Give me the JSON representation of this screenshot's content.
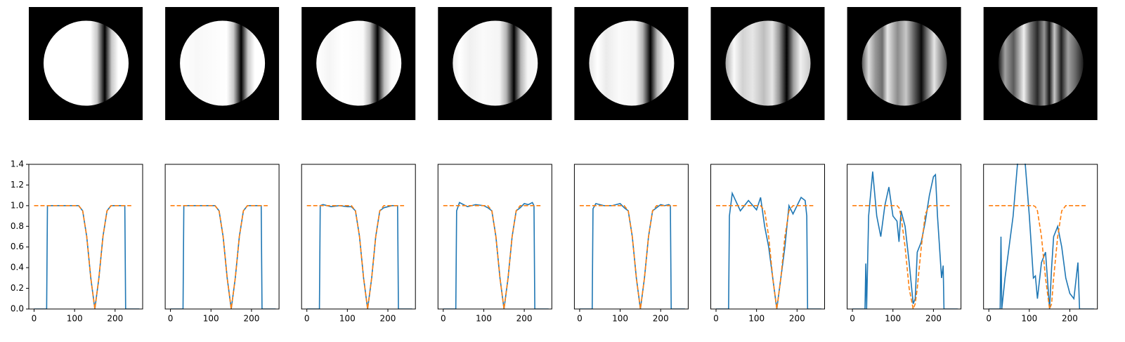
{
  "chart_data": [
    {
      "type": "line",
      "x": [
        0,
        20,
        31,
        33,
        40,
        60,
        80,
        100,
        110,
        120,
        130,
        140,
        150,
        160,
        170,
        180,
        190,
        200,
        210,
        220,
        224,
        226,
        240,
        260
      ],
      "series": [
        {
          "color": "#1f77b4",
          "linestyle": "solid",
          "values": [
            0,
            0,
            0,
            1,
            1,
            1,
            1,
            1,
            1,
            0.95,
            0.7,
            0.3,
            0,
            0.3,
            0.7,
            0.95,
            1,
            1,
            1,
            1,
            1,
            0,
            0,
            0
          ]
        },
        {
          "color": "#ff7f0e",
          "linestyle": "dashed",
          "values": [
            1,
            1,
            1,
            1,
            1,
            1,
            1,
            1,
            1,
            0.95,
            0.7,
            0.3,
            0,
            0.3,
            0.7,
            0.95,
            1,
            1,
            1,
            1,
            1,
            1,
            1,
            null
          ]
        }
      ],
      "xlim": [
        -13,
        268
      ],
      "ylim": [
        0,
        1.4
      ],
      "xticks": [
        0,
        100,
        200
      ],
      "yticks": [
        {
          "value": 0,
          "label": "0.0"
        },
        {
          "value": 0.2,
          "label": "0.2"
        },
        {
          "value": 0.4,
          "label": "0.4"
        },
        {
          "value": 0.6,
          "label": "0.6"
        },
        {
          "value": 0.8,
          "label": "0.8"
        },
        {
          "value": 1,
          "label": "1.0"
        },
        {
          "value": 1.2,
          "label": "1.2"
        },
        {
          "value": 1.4,
          "label": "1.4"
        }
      ]
    },
    {
      "type": "line",
      "x": [
        0,
        20,
        31,
        33,
        40,
        60,
        80,
        100,
        110,
        120,
        130,
        140,
        150,
        160,
        170,
        180,
        190,
        200,
        210,
        220,
        224,
        226,
        240,
        260
      ],
      "series": [
        {
          "color": "#1f77b4",
          "linestyle": "solid",
          "values": [
            0,
            0,
            0,
            1,
            1,
            1,
            1,
            1,
            1,
            0.95,
            0.7,
            0.3,
            0,
            0.3,
            0.7,
            0.95,
            1,
            1,
            1,
            1,
            1,
            0,
            0,
            0
          ]
        },
        {
          "color": "#ff7f0e",
          "linestyle": "dashed",
          "values": [
            1,
            1,
            1,
            1,
            1,
            1,
            1,
            1,
            1,
            0.95,
            0.7,
            0.3,
            0,
            0.3,
            0.7,
            0.95,
            1,
            1,
            1,
            1,
            1,
            1,
            1,
            null
          ]
        }
      ],
      "xlim": [
        -13,
        268
      ],
      "ylim": [
        0,
        1.4
      ],
      "xticks": [
        0,
        100,
        200
      ]
    },
    {
      "type": "line",
      "x": [
        0,
        20,
        31,
        33,
        40,
        60,
        80,
        100,
        110,
        120,
        130,
        140,
        150,
        160,
        170,
        180,
        190,
        200,
        210,
        220,
        224,
        226,
        240,
        260
      ],
      "series": [
        {
          "color": "#1f77b4",
          "linestyle": "solid",
          "values": [
            0,
            0,
            0,
            1,
            1.01,
            0.99,
            1,
            0.99,
            0.99,
            0.95,
            0.7,
            0.3,
            0,
            0.3,
            0.7,
            0.95,
            0.98,
            0.99,
            1,
            1,
            1,
            0,
            0,
            0
          ]
        },
        {
          "color": "#ff7f0e",
          "linestyle": "dashed",
          "values": [
            1,
            1,
            1,
            1,
            1,
            1,
            1,
            1,
            1,
            0.95,
            0.7,
            0.3,
            0,
            0.3,
            0.7,
            0.95,
            1,
            1,
            1,
            1,
            1,
            1,
            1,
            null
          ]
        }
      ],
      "xlim": [
        -13,
        268
      ],
      "ylim": [
        0,
        1.4
      ],
      "xticks": [
        0,
        100,
        200
      ]
    },
    {
      "type": "line",
      "x": [
        0,
        20,
        31,
        33,
        40,
        60,
        80,
        100,
        110,
        120,
        130,
        140,
        150,
        160,
        170,
        180,
        190,
        200,
        210,
        220,
        224,
        226,
        240,
        260
      ],
      "series": [
        {
          "color": "#1f77b4",
          "linestyle": "solid",
          "values": [
            0,
            0,
            0,
            0.95,
            1.03,
            0.99,
            1.01,
            1,
            0.98,
            0.95,
            0.7,
            0.3,
            0,
            0.3,
            0.7,
            0.95,
            0.98,
            1.02,
            1.01,
            1.03,
            1,
            0,
            0,
            0
          ]
        },
        {
          "color": "#ff7f0e",
          "linestyle": "dashed",
          "values": [
            1,
            1,
            1,
            1,
            1,
            1,
            1,
            1,
            1,
            0.95,
            0.7,
            0.3,
            0,
            0.3,
            0.7,
            0.95,
            1,
            1,
            1,
            1,
            1,
            1,
            1,
            null
          ]
        }
      ],
      "xlim": [
        -13,
        268
      ],
      "ylim": [
        0,
        1.4
      ],
      "xticks": [
        0,
        100,
        200
      ]
    },
    {
      "type": "line",
      "x": [
        0,
        20,
        31,
        33,
        40,
        60,
        80,
        100,
        110,
        120,
        130,
        140,
        150,
        160,
        170,
        180,
        190,
        200,
        210,
        220,
        224,
        226,
        240,
        260
      ],
      "series": [
        {
          "color": "#1f77b4",
          "linestyle": "solid",
          "values": [
            0,
            0,
            0,
            0.97,
            1.02,
            1,
            1,
            1.02,
            0.98,
            0.95,
            0.7,
            0.3,
            0,
            0.3,
            0.7,
            0.95,
            0.98,
            1.01,
            1,
            1.01,
            1,
            0,
            0,
            0
          ]
        },
        {
          "color": "#ff7f0e",
          "linestyle": "dashed",
          "values": [
            1,
            1,
            1,
            1,
            1,
            1,
            1,
            1,
            1,
            0.95,
            0.7,
            0.3,
            0,
            0.3,
            0.7,
            0.95,
            1,
            1,
            1,
            1,
            1,
            1,
            1,
            null
          ]
        }
      ],
      "xlim": [
        -13,
        268
      ],
      "ylim": [
        0,
        1.4
      ],
      "xticks": [
        0,
        100,
        200
      ]
    },
    {
      "type": "line",
      "x": [
        0,
        20,
        31,
        33,
        40,
        60,
        80,
        100,
        110,
        120,
        130,
        140,
        150,
        160,
        170,
        180,
        190,
        200,
        210,
        220,
        224,
        226,
        240,
        260
      ],
      "series": [
        {
          "color": "#1f77b4",
          "linestyle": "solid",
          "values": [
            0,
            0,
            0,
            0.9,
            1.12,
            0.95,
            1.05,
            0.96,
            1.08,
            0.8,
            0.6,
            0.3,
            0,
            0.3,
            0.6,
            1,
            0.92,
            1,
            1.08,
            1.05,
            0.9,
            0,
            0,
            0
          ]
        },
        {
          "color": "#ff7f0e",
          "linestyle": "dashed",
          "values": [
            1,
            1,
            1,
            1,
            1,
            1,
            1,
            1,
            1,
            0.95,
            0.7,
            0.3,
            0,
            0.3,
            0.7,
            0.95,
            1,
            1,
            1,
            1,
            1,
            1,
            1,
            null
          ]
        }
      ],
      "xlim": [
        -13,
        268
      ],
      "ylim": [
        0,
        1.4
      ],
      "xticks": [
        0,
        100,
        200
      ]
    },
    {
      "type": "line",
      "x": [
        0,
        20,
        31,
        33,
        35,
        40,
        50,
        60,
        70,
        80,
        90,
        100,
        110,
        115,
        120,
        130,
        140,
        150,
        155,
        160,
        170,
        180,
        190,
        200,
        205,
        210,
        220,
        224,
        226,
        240,
        260
      ],
      "series": [
        {
          "color": "#1f77b4",
          "linestyle": "solid",
          "values": [
            0,
            0,
            0,
            0.44,
            0,
            0.9,
            1.33,
            0.9,
            0.7,
            1,
            1.18,
            0.9,
            0.85,
            0.65,
            0.95,
            0.8,
            0.45,
            0.05,
            0.1,
            0.55,
            0.65,
            0.85,
            1.1,
            1.28,
            1.3,
            0.9,
            0.3,
            0.42,
            0,
            0,
            0
          ]
        },
        {
          "color": "#ff7f0e",
          "linestyle": "dashed",
          "values": [
            1,
            1,
            1,
            1,
            1,
            1,
            1,
            1,
            1,
            1,
            1,
            1,
            1,
            0.98,
            0.9,
            0.6,
            0.2,
            0,
            0.05,
            0.2,
            0.6,
            0.92,
            1,
            1,
            1,
            1,
            1,
            1,
            1,
            1,
            null
          ]
        }
      ],
      "xlim": [
        -13,
        268
      ],
      "ylim": [
        0,
        1.4
      ],
      "xticks": [
        0,
        100,
        200
      ]
    },
    {
      "type": "line",
      "x": [
        0,
        20,
        28,
        30,
        32,
        40,
        60,
        75,
        80,
        90,
        100,
        105,
        110,
        115,
        120,
        130,
        140,
        150,
        155,
        160,
        170,
        180,
        190,
        200,
        210,
        220,
        224,
        226,
        240,
        260
      ],
      "series": [
        {
          "color": "#1f77b4",
          "linestyle": "solid",
          "values": [
            0,
            0,
            0,
            0.7,
            0,
            0.3,
            0.9,
            1.6,
            1.65,
            1.4,
            0.9,
            0.6,
            0.3,
            0.32,
            0.1,
            0.45,
            0.55,
            0,
            0.4,
            0.7,
            0.8,
            0.6,
            0.3,
            0.15,
            0.1,
            0.45,
            0,
            0,
            0,
            0
          ]
        },
        {
          "color": "#ff7f0e",
          "linestyle": "dashed",
          "values": [
            1,
            1,
            1,
            1,
            1,
            1,
            1,
            1,
            1,
            1,
            1,
            1,
            1,
            0.99,
            0.95,
            0.7,
            0.3,
            0,
            0.05,
            0.3,
            0.7,
            0.95,
            1,
            1,
            1,
            1,
            1,
            1,
            1,
            null
          ]
        }
      ],
      "xlim": [
        -13,
        268
      ],
      "ylim": [
        0,
        1.4
      ],
      "xticks": [
        0,
        100,
        200
      ]
    }
  ]
}
